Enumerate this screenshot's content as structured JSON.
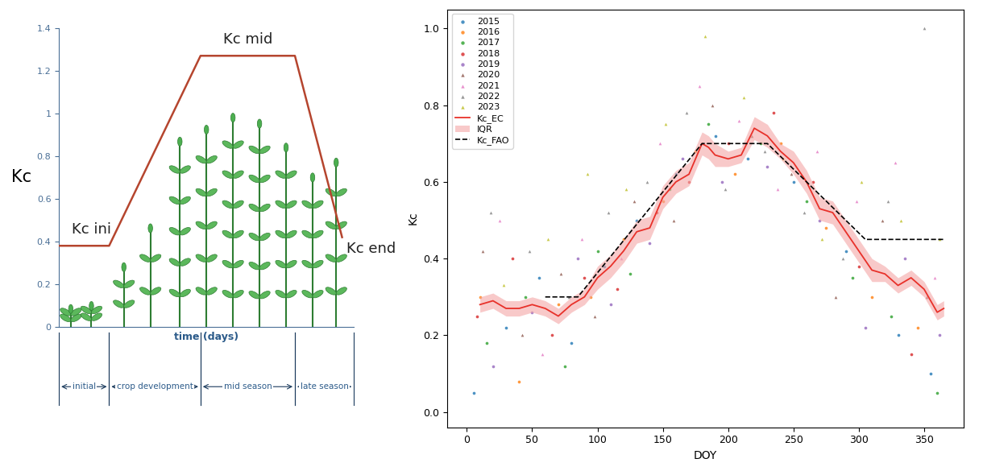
{
  "chart_data": [
    {
      "type": "line",
      "ylabel": "Kc",
      "xlabel": "time (days)",
      "x": [
        0,
        17,
        48,
        80,
        96
      ],
      "values": [
        0.38,
        0.38,
        1.27,
        1.27,
        0.42
      ],
      "color": "#b5452e",
      "xlim": [
        0,
        100
      ],
      "ylim": [
        0,
        1.4
      ],
      "yticks": [
        0,
        0.2,
        0.4,
        0.6,
        0.8,
        1,
        1.2,
        1.4
      ],
      "tick_labels": "y",
      "annotations": [
        {
          "text": "Kc ini",
          "x": 11,
          "y": 0.38
        },
        {
          "text": "Kc mid",
          "x": 64,
          "y": 1.27
        },
        {
          "text": "Kc end",
          "x": 96,
          "y": 0.42
        }
      ],
      "stages": [
        {
          "label": "initial",
          "start": 0,
          "end": 17
        },
        {
          "label": "crop development",
          "start": 17,
          "end": 48
        },
        {
          "label": "mid season",
          "start": 48,
          "end": 80
        },
        {
          "label": "late season",
          "start": 80,
          "end": 100
        }
      ]
    },
    {
      "type": "scatter",
      "xlabel": "DOY",
      "ylabel": "Kc",
      "xlim": [
        -15,
        380
      ],
      "ylim": [
        -0.04,
        1.05
      ],
      "xticks": [
        0,
        50,
        100,
        150,
        200,
        250,
        300,
        350
      ],
      "yticks": [
        0.0,
        0.2,
        0.4,
        0.6,
        0.8,
        1.0
      ],
      "legend": "upper left",
      "series": [
        {
          "name": "2015",
          "type": "scatter",
          "color": "#1f77b4",
          "marker": "circle",
          "x": [
            5,
            30,
            55,
            80,
            105,
            130,
            160,
            190,
            215,
            250,
            290,
            330,
            355
          ],
          "values": [
            0.05,
            0.22,
            0.35,
            0.18,
            0.38,
            0.5,
            0.62,
            0.72,
            0.66,
            0.6,
            0.42,
            0.2,
            0.1
          ]
        },
        {
          "name": "2016",
          "type": "scatter",
          "color": "#ff7f0e",
          "marker": "circle",
          "x": [
            10,
            40,
            70,
            95,
            120,
            150,
            175,
            205,
            240,
            275,
            310,
            345
          ],
          "values": [
            0.3,
            0.08,
            0.28,
            0.3,
            0.45,
            0.55,
            0.68,
            0.62,
            0.7,
            0.48,
            0.3,
            0.22
          ]
        },
        {
          "name": "2017",
          "type": "scatter",
          "color": "#2ca02c",
          "marker": "circle",
          "x": [
            15,
            45,
            75,
            100,
            125,
            155,
            185,
            225,
            260,
            295,
            325,
            360
          ],
          "values": [
            0.18,
            0.3,
            0.12,
            0.42,
            0.36,
            0.58,
            0.75,
            0.7,
            0.55,
            0.35,
            0.25,
            0.05
          ]
        },
        {
          "name": "2018",
          "type": "scatter",
          "color": "#d62728",
          "marker": "circle",
          "x": [
            8,
            35,
            65,
            90,
            115,
            145,
            170,
            200,
            235,
            265,
            300,
            340
          ],
          "values": [
            0.25,
            0.4,
            0.2,
            0.35,
            0.32,
            0.52,
            0.6,
            0.7,
            0.78,
            0.6,
            0.38,
            0.15
          ]
        },
        {
          "name": "2019",
          "type": "scatter",
          "color": "#9467bd",
          "marker": "circle",
          "x": [
            20,
            50,
            85,
            110,
            140,
            165,
            195,
            230,
            270,
            305,
            335,
            362
          ],
          "values": [
            0.12,
            0.26,
            0.4,
            0.28,
            0.44,
            0.66,
            0.6,
            0.64,
            0.5,
            0.22,
            0.4,
            0.2
          ]
        },
        {
          "name": "2020",
          "type": "scatter",
          "color": "#8c564b",
          "marker": "triangle",
          "x": [
            12,
            42,
            72,
            98,
            128,
            158,
            188,
            218,
            248,
            282,
            318,
            352
          ],
          "values": [
            0.42,
            0.2,
            0.36,
            0.25,
            0.55,
            0.5,
            0.8,
            0.72,
            0.62,
            0.3,
            0.5,
            0.3
          ]
        },
        {
          "name": "2021",
          "type": "scatter",
          "color": "#e377c2",
          "marker": "triangle",
          "x": [
            25,
            58,
            88,
            118,
            148,
            178,
            208,
            238,
            268,
            298,
            328,
            358
          ],
          "values": [
            0.5,
            0.15,
            0.45,
            0.4,
            0.7,
            0.85,
            0.76,
            0.58,
            0.68,
            0.55,
            0.65,
            0.35
          ]
        },
        {
          "name": "2022",
          "type": "scatter",
          "color": "#7f7f7f",
          "marker": "triangle",
          "x": [
            18,
            48,
            78,
            108,
            138,
            168,
            198,
            228,
            258,
            288,
            322,
            350
          ],
          "values": [
            0.52,
            0.42,
            0.3,
            0.52,
            0.6,
            0.78,
            0.58,
            0.68,
            0.52,
            0.4,
            0.55,
            1.0
          ]
        },
        {
          "name": "2023",
          "type": "scatter",
          "color": "#bcbd22",
          "marker": "triangle",
          "x": [
            28,
            62,
            92,
            122,
            152,
            182,
            212,
            242,
            272,
            302,
            332,
            362
          ],
          "values": [
            0.33,
            0.45,
            0.62,
            0.58,
            0.75,
            0.98,
            0.82,
            0.66,
            0.45,
            0.6,
            0.5,
            0.45
          ]
        },
        {
          "name": "Kc_EC",
          "type": "line",
          "color": "#e8312a",
          "line_style": "solid",
          "x": [
            10,
            20,
            30,
            40,
            50,
            60,
            70,
            80,
            90,
            100,
            110,
            120,
            130,
            140,
            150,
            160,
            170,
            180,
            185,
            190,
            200,
            210,
            220,
            230,
            240,
            250,
            260,
            270,
            280,
            290,
            300,
            310,
            320,
            330,
            340,
            350,
            360,
            365
          ],
          "values": [
            0.28,
            0.29,
            0.27,
            0.27,
            0.28,
            0.27,
            0.25,
            0.28,
            0.3,
            0.35,
            0.38,
            0.42,
            0.47,
            0.48,
            0.56,
            0.6,
            0.62,
            0.7,
            0.69,
            0.67,
            0.66,
            0.67,
            0.74,
            0.72,
            0.68,
            0.65,
            0.6,
            0.53,
            0.52,
            0.47,
            0.42,
            0.37,
            0.36,
            0.33,
            0.35,
            0.32,
            0.26,
            0.27
          ]
        },
        {
          "name": "IQR",
          "type": "band",
          "color": "#f4a6a6",
          "x": [
            10,
            20,
            30,
            40,
            50,
            60,
            70,
            80,
            90,
            100,
            110,
            120,
            130,
            140,
            150,
            160,
            170,
            180,
            185,
            190,
            200,
            210,
            220,
            230,
            240,
            250,
            260,
            270,
            280,
            290,
            300,
            310,
            320,
            330,
            340,
            350,
            360,
            365
          ],
          "lower": [
            0.26,
            0.27,
            0.25,
            0.25,
            0.26,
            0.25,
            0.23,
            0.26,
            0.28,
            0.32,
            0.35,
            0.39,
            0.44,
            0.45,
            0.53,
            0.57,
            0.59,
            0.67,
            0.66,
            0.64,
            0.64,
            0.65,
            0.71,
            0.69,
            0.66,
            0.62,
            0.57,
            0.5,
            0.49,
            0.44,
            0.39,
            0.34,
            0.34,
            0.31,
            0.33,
            0.3,
            0.24,
            0.25
          ],
          "upper": [
            0.3,
            0.31,
            0.29,
            0.29,
            0.3,
            0.29,
            0.27,
            0.3,
            0.32,
            0.38,
            0.41,
            0.45,
            0.5,
            0.51,
            0.59,
            0.63,
            0.65,
            0.73,
            0.72,
            0.7,
            0.68,
            0.69,
            0.77,
            0.75,
            0.7,
            0.68,
            0.63,
            0.56,
            0.55,
            0.5,
            0.45,
            0.4,
            0.38,
            0.35,
            0.37,
            0.34,
            0.28,
            0.29
          ]
        },
        {
          "name": "Kc_FAO",
          "type": "line",
          "color": "#000000",
          "line_style": "dashed",
          "x": [
            60,
            85,
            180,
            230,
            305,
            365
          ],
          "values": [
            0.3,
            0.3,
            0.7,
            0.7,
            0.45,
            0.45
          ]
        }
      ]
    }
  ]
}
